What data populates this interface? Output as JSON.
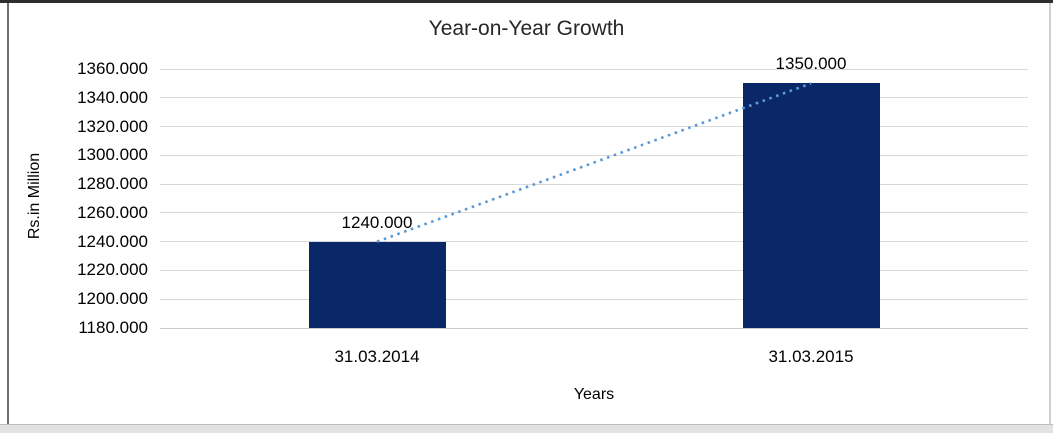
{
  "chart_data": {
    "type": "bar",
    "title": "Year-on-Year Growth",
    "xlabel": "Years",
    "ylabel": "Rs.in Million",
    "categories": [
      "31.03.2014",
      "31.03.2015"
    ],
    "values": [
      1240,
      1350
    ],
    "data_labels": [
      "1240.000",
      "1350.000"
    ],
    "ylim": [
      1180,
      1360
    ],
    "ytick_values": [
      1180,
      1200,
      1220,
      1240,
      1260,
      1280,
      1300,
      1320,
      1340,
      1360
    ],
    "ytick_labels": [
      "1180.000",
      "1200.000",
      "1220.000",
      "1240.000",
      "1260.000",
      "1280.000",
      "1300.000",
      "1320.000",
      "1340.000",
      "1360.000"
    ],
    "grid": true,
    "legend": "none",
    "trendline": {
      "type": "linear",
      "style": "dotted",
      "from_category": "31.03.2014",
      "from_value": 1240,
      "to_category": "31.03.2015",
      "to_value": 1350
    },
    "colors": {
      "bar": "#0A2868",
      "trendline": "#5B9BD5",
      "gridline": "#D9D9D9",
      "axis_line": "#C9C9C9",
      "text": "#000000"
    }
  },
  "frame": {
    "border_top": "#2E2E2E",
    "border_left": "#707070",
    "border_right": "#CFCFCF",
    "border_bottom_band": "#E2E2E2"
  }
}
